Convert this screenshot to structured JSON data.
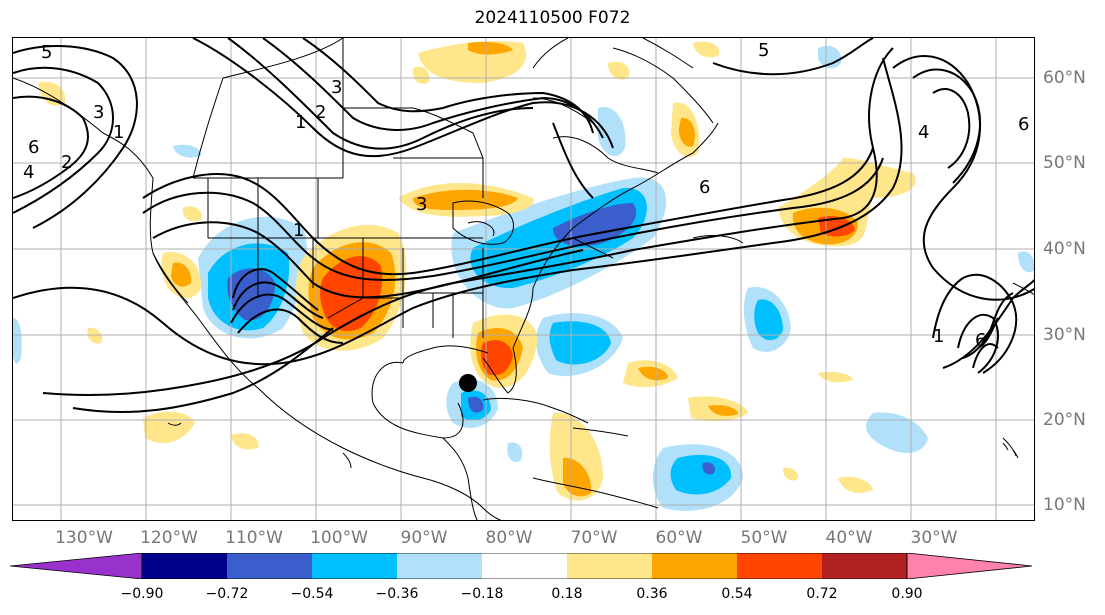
{
  "title": "2024110500 F072",
  "lon_labels": [
    "130°W",
    "120°W",
    "110°W",
    "100°W",
    "90°W",
    "80°W",
    "70°W",
    "60°W",
    "50°W",
    "40°W",
    "30°W"
  ],
  "lat_labels": [
    "60°N",
    "50°N",
    "40°N",
    "30°N",
    "20°N",
    "10°N"
  ],
  "colorbar": {
    "ticks": [
      "−0.90",
      "−0.72",
      "−0.54",
      "−0.36",
      "−0.18",
      "0.18",
      "0.36",
      "0.54",
      "0.72",
      "0.90"
    ],
    "colors": [
      "#9932cc",
      "#00008b",
      "#3a5fcd",
      "#00bfff",
      "#b0e0fa",
      "#ffffff",
      "#ffe68a",
      "#ffa500",
      "#ff4500",
      "#b22222",
      "#ff82ab"
    ]
  },
  "contour_labels": [
    "5",
    "6",
    "3",
    "4",
    "2",
    "1",
    "1",
    "2",
    "3",
    "1",
    "3",
    "6",
    "5",
    "4",
    "6",
    "1",
    "6"
  ],
  "colors": {
    "contour": "#000000",
    "grid": "#b0b0b0",
    "coast": "#000000",
    "marker": "#000000"
  },
  "marker": "storm-center-dot"
}
